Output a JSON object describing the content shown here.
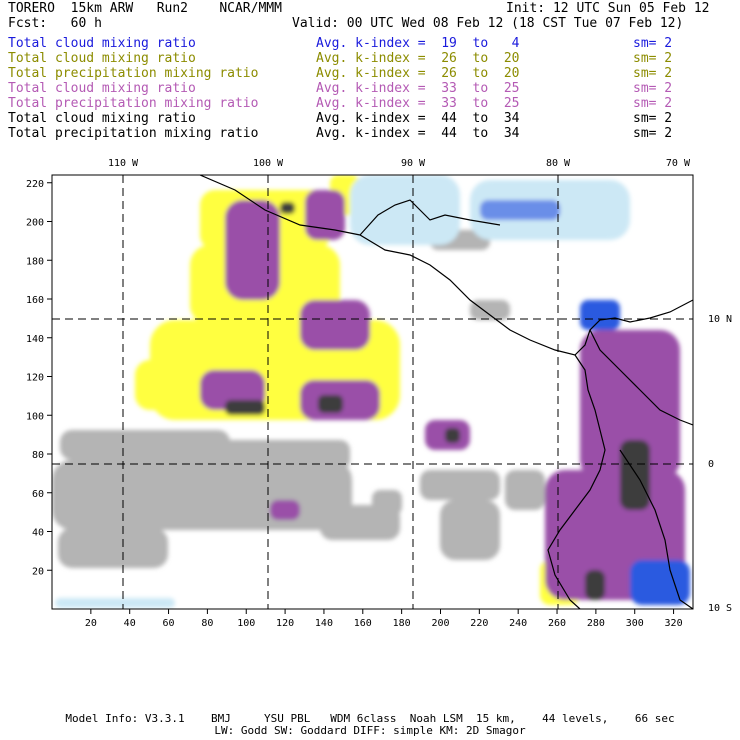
{
  "header": {
    "model": "TORERO  15km ARW   Run2    NCAR/MMM",
    "init": "Init: 12 UTC Sun 05 Feb 12",
    "fcst": "Fcst:   60 h",
    "valid": "Valid: 00 UTC Wed 08 Feb 12 (18 CST Tue 07 Feb 12)"
  },
  "legend": [
    {
      "field": "Total cloud mixing ratio",
      "index": "Avg. k-index =  19  to   4",
      "sm": "sm= 2",
      "color": "#1a1adc"
    },
    {
      "field": "Total cloud mixing ratio",
      "index": "Avg. k-index =  26  to  20",
      "sm": "sm= 2",
      "color": "#8c8c00"
    },
    {
      "field": "Total precipitation mixing ratio",
      "index": "Avg. k-index =  26  to  20",
      "sm": "sm= 2",
      "color": "#8c8c00"
    },
    {
      "field": "Total cloud mixing ratio",
      "index": "Avg. k-index =  33  to  25",
      "sm": "sm= 2",
      "color": "#b45ab4"
    },
    {
      "field": "Total precipitation mixing ratio",
      "index": "Avg. k-index =  33  to  25",
      "sm": "sm= 2",
      "color": "#b45ab4"
    },
    {
      "field": "Total cloud mixing ratio",
      "index": "Avg. k-index =  44  to  34",
      "sm": "sm= 2",
      "color": "#000000"
    },
    {
      "field": "Total precipitation mixing ratio",
      "index": "Avg. k-index =  44  to  34",
      "sm": "sm= 2",
      "color": "#000000"
    }
  ],
  "map": {
    "lon_labels": [
      "110 W",
      "100 W",
      "90 W",
      "80 W",
      "70 W"
    ],
    "lat_labels": [
      "10 N",
      "0",
      "10 S"
    ],
    "x_ticks": [
      "20",
      "40",
      "60",
      "80",
      "100",
      "120",
      "140",
      "160",
      "180",
      "200",
      "220",
      "240",
      "260",
      "280",
      "300",
      "320"
    ],
    "y_ticks": [
      "20",
      "40",
      "60",
      "80",
      "100",
      "120",
      "140",
      "160",
      "180",
      "200",
      "220"
    ],
    "colors": {
      "blue_light": "#cce8f5",
      "blue": "#2a5ae0",
      "yellow": "#ffff40",
      "purple": "#9a50a8",
      "gray": "#b4b4b4",
      "dark": "#3c3c3c"
    }
  },
  "footer": {
    "line1": "Model Info: V3.3.1    BMJ     YSU PBL   WDM 6class  Noah LSM  15 km,    44 levels,    66 sec",
    "line2": "LW: Godd SW: Goddard DIFF: simple KM: 2D Smagor"
  }
}
